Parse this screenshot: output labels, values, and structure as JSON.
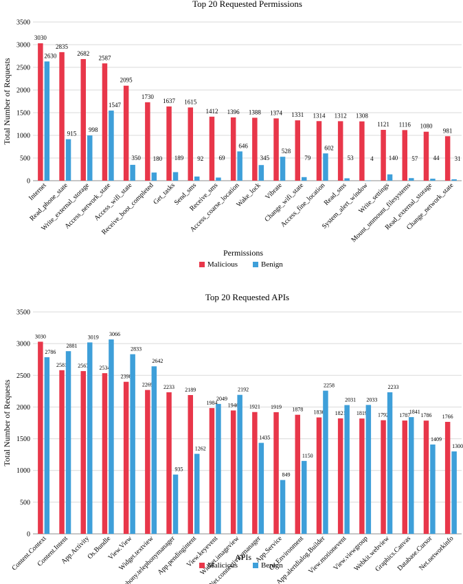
{
  "colors": {
    "malicious": "#e8374a",
    "benign": "#3e9fd9",
    "grid": "#d9d9d9",
    "axis": "#8c8c8c"
  },
  "chart_data": [
    {
      "type": "bar",
      "title": "Top 20 Requested Permissions",
      "xlabel": "Permissions",
      "ylabel": "Total Number of Requests",
      "ylim": [
        0,
        3500
      ],
      "yticks": [
        0,
        500,
        1000,
        1500,
        2000,
        2500,
        3000,
        3500
      ],
      "grid": true,
      "legend_position": "bottom-center",
      "categories": [
        "Internet",
        "Read_phone_state",
        "Write_external_storage",
        "Access_network_state",
        "Access_wifi_state",
        "Receive_boot_completed",
        "Get_tasks",
        "Send_sms",
        "Receive_sms",
        "Access_coarse_location",
        "Wake_lock",
        "Vibrate",
        "Change_wifi_state",
        "Access_fine_location",
        "Read_sms",
        "System_alert_window",
        "Write_settings",
        "Mount_unmount_filesystems",
        "Read_external_storage",
        "Change_network_state"
      ],
      "series": [
        {
          "name": "Malicious",
          "values": [
            3030,
            2835,
            2682,
            2587,
            2095,
            1730,
            1637,
            1615,
            1412,
            1396,
            1388,
            1374,
            1331,
            1314,
            1312,
            1308,
            1121,
            1116,
            1080,
            981
          ]
        },
        {
          "name": "Benign",
          "values": [
            2630,
            915,
            998,
            1547,
            350,
            180,
            189,
            92,
            69,
            646,
            345,
            528,
            79,
            602,
            53,
            4,
            140,
            57,
            44,
            31
          ]
        }
      ]
    },
    {
      "type": "bar",
      "title": "Top 20 Requested APIs",
      "xlabel": "APIs",
      "ylabel": "Total Number of Requests",
      "ylim": [
        0,
        3500
      ],
      "yticks": [
        0,
        500,
        1000,
        1500,
        2000,
        2500,
        3000,
        3500
      ],
      "grid": true,
      "legend_position": "bottom-center",
      "categories": [
        "Content.Context",
        "Content.Intent",
        "App.Activity",
        "Os.Bundle",
        "View.View",
        "Widget.textview",
        "Telephony.telephonymanager",
        "App.pendingintent",
        "View.keyevent",
        "Widget.imageview",
        "Net.connectivitymanager",
        "App.Service",
        "Os.Environment",
        "App.alertdialog.Builder",
        "View.motionevent",
        "View.viewgroup",
        "Webkit.webview",
        "Graphics.Canvas",
        "Database.Cursor",
        "Net.networkinfo"
      ],
      "series": [
        {
          "name": "Malicious",
          "values": [
            3030,
            2581,
            2567,
            2534,
            2398,
            2269,
            2233,
            2189,
            1984,
            1946,
            1921,
            1919,
            1878,
            1836,
            1821,
            1819,
            1792,
            1787,
            1786,
            1766
          ]
        },
        {
          "name": "Benign",
          "values": [
            2786,
            2881,
            3019,
            3066,
            2833,
            2642,
            935,
            1262,
            2049,
            2192,
            1435,
            849,
            1150,
            2258,
            2031,
            2033,
            2233,
            1841,
            1409,
            1300
          ]
        }
      ]
    }
  ]
}
